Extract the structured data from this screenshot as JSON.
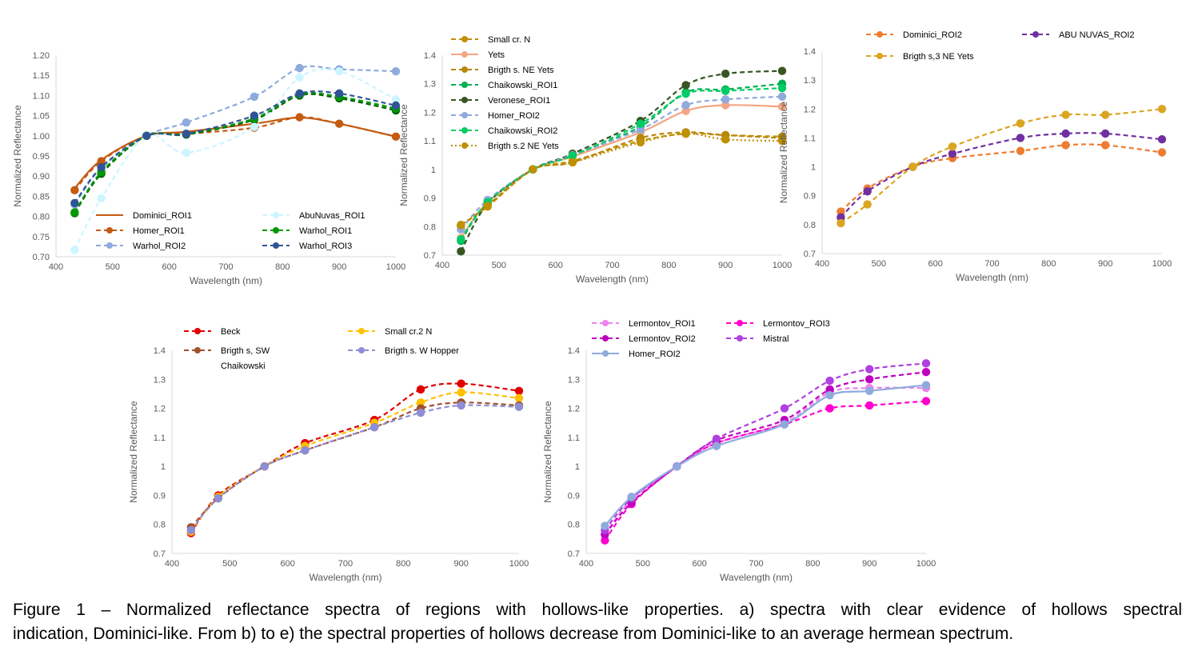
{
  "caption": {
    "line1": "Figure 1 – Normalized reflectance spectra of regions with hollows-like properties. a) spectra with clear evidence of hollows spectral",
    "line2": "indication, Dominici-like. From b) to e) the spectral properties of hollows decrease from Dominici-like to an average hermean spectrum."
  },
  "chart_data": [
    {
      "type": "line",
      "xlabel": "Wavelength (nm)",
      "ylabel": "Normalized Reflectance",
      "xlim": [
        400,
        1000
      ],
      "ylim": [
        0.7,
        1.2
      ],
      "xticks": [
        "400",
        "500",
        "600",
        "700",
        "800",
        "900",
        "1000"
      ],
      "yticks": [
        "0.70",
        "0.75",
        "0.80",
        "0.85",
        "0.90",
        "0.95",
        "1.00",
        "1.05",
        "1.10",
        "1.15",
        "1.20"
      ],
      "grid": false,
      "legend": "bottom",
      "series": [
        {
          "name": "Dominici_ROI1",
          "color": "#c55a11",
          "dash": "",
          "marker": false,
          "x": [
            433,
            480,
            560,
            630,
            750,
            830,
            900,
            1000
          ],
          "y": [
            0.87,
            0.94,
            1.0,
            1.01,
            1.03,
            1.045,
            1.03,
            0.998
          ]
        },
        {
          "name": "Homer_ROI1",
          "color": "#c55a11",
          "dash": "6,4",
          "marker": true,
          "x": [
            433,
            480,
            560,
            630,
            750,
            830,
            900,
            1000
          ],
          "y": [
            0.865,
            0.937,
            1.0,
            1.005,
            1.02,
            1.046,
            1.03,
            0.998
          ]
        },
        {
          "name": "Warhol_ROI2",
          "color": "#8faadc",
          "dash": "6,4",
          "marker": true,
          "x": [
            433,
            480,
            560,
            630,
            750,
            830,
            900,
            1000
          ],
          "y": [
            0.83,
            0.92,
            1.0,
            1.033,
            1.097,
            1.168,
            1.165,
            1.16
          ]
        },
        {
          "name": "",
          "color": "#006100",
          "dash": "6,4",
          "marker": true,
          "x": [
            433,
            480,
            560,
            630,
            750,
            830,
            900,
            1000
          ],
          "y": [
            0.808,
            0.906,
            1.0,
            1.003,
            1.04,
            1.1,
            1.093,
            1.063
          ]
        },
        {
          "name": "AbuNuvas_ROI1",
          "color": "#ccf5ff",
          "dash": "6,4",
          "marker": true,
          "x": [
            433,
            480,
            560,
            630,
            750,
            830,
            900,
            1000
          ],
          "y": [
            0.717,
            0.845,
            1.0,
            0.958,
            1.022,
            1.145,
            1.16,
            1.09
          ]
        },
        {
          "name": "Warhol_ROI1",
          "color": "#009900",
          "dash": "6,4",
          "marker": true,
          "x": [
            433,
            480,
            560,
            630,
            750,
            830,
            900,
            1000
          ],
          "y": [
            0.81,
            0.91,
            1.0,
            1.005,
            1.043,
            1.103,
            1.097,
            1.068
          ]
        },
        {
          "name": "Warhol_ROI3",
          "color": "#2f5597",
          "dash": "6,4",
          "marker": true,
          "x": [
            433,
            480,
            560,
            630,
            750,
            830,
            900,
            1000
          ],
          "y": [
            0.833,
            0.922,
            1.0,
            1.005,
            1.05,
            1.105,
            1.105,
            1.075
          ]
        }
      ]
    },
    {
      "type": "line",
      "xlabel": "Wavelength (nm)",
      "ylabel": "Normalized Reflectance",
      "xlim": [
        400,
        1000
      ],
      "ylim": [
        0.7,
        1.4
      ],
      "xticks": [
        "400",
        "500",
        "600",
        "700",
        "800",
        "900",
        "1000"
      ],
      "yticks": [
        "0.7",
        "0.8",
        "0.9",
        "1",
        "1.1",
        "1.2",
        "1.3",
        "1.4"
      ],
      "grid": false,
      "legend": "top-left",
      "series": [
        {
          "name": "Small cr. N",
          "color": "#bf9000",
          "dash": "6,4",
          "marker": true,
          "x": [
            433,
            480,
            560,
            630,
            750,
            830,
            900,
            1000
          ],
          "y": [
            0.806,
            0.87,
            1.0,
            1.03,
            1.1,
            1.125,
            1.12,
            1.115
          ]
        },
        {
          "name": "Yets",
          "color": "#f4a582",
          "dash": "",
          "marker": true,
          "x": [
            433,
            480,
            560,
            630,
            750,
            830,
            900,
            1000
          ],
          "y": [
            0.76,
            0.885,
            1.0,
            1.045,
            1.13,
            1.205,
            1.225,
            1.22
          ]
        },
        {
          "name": "Brigth s. NE Yets",
          "color": "#b8860b",
          "dash": "6,4",
          "marker": true,
          "x": [
            433,
            480,
            560,
            630,
            750,
            830,
            900,
            1000
          ],
          "y": [
            0.8,
            0.875,
            1.0,
            1.025,
            1.11,
            1.13,
            1.12,
            1.11
          ]
        },
        {
          "name": "Chaikowski_ROI1",
          "color": "#00b050",
          "dash": "6,4",
          "marker": true,
          "x": [
            433,
            480,
            560,
            630,
            750,
            830,
            900,
            1000
          ],
          "y": [
            0.75,
            0.885,
            1.0,
            1.05,
            1.15,
            1.27,
            1.28,
            1.3
          ]
        },
        {
          "name": "Veronese_ROI1",
          "color": "#375623",
          "dash": "6,4",
          "marker": true,
          "x": [
            433,
            480,
            560,
            630,
            750,
            830,
            900,
            1000
          ],
          "y": [
            0.713,
            0.88,
            1.0,
            1.055,
            1.17,
            1.295,
            1.335,
            1.345
          ]
        },
        {
          "name": "Homer_ROI2",
          "color": "#8faadc",
          "dash": "6,4",
          "marker": true,
          "x": [
            433,
            480,
            560,
            630,
            750,
            830,
            900,
            1000
          ],
          "y": [
            0.79,
            0.893,
            1.0,
            1.05,
            1.14,
            1.225,
            1.245,
            1.255
          ]
        },
        {
          "name": "Chaikowski_ROI2",
          "color": "#00cc66",
          "dash": "6,4",
          "marker": true,
          "x": [
            433,
            480,
            560,
            630,
            750,
            830,
            900,
            1000
          ],
          "y": [
            0.755,
            0.885,
            1.0,
            1.048,
            1.16,
            1.265,
            1.275,
            1.285
          ]
        },
        {
          "name": "Brigth s.2 NE Yets",
          "color": "#bf9000",
          "dash": "2,3",
          "marker": true,
          "x": [
            433,
            480,
            560,
            630,
            750,
            830,
            900,
            1000
          ],
          "y": [
            0.805,
            0.872,
            1.0,
            1.025,
            1.095,
            1.125,
            1.105,
            1.1
          ]
        }
      ]
    },
    {
      "type": "line",
      "xlabel": "Wavelength (nm)",
      "ylabel": "Normalized Reflectance",
      "xlim": [
        400,
        1000
      ],
      "ylim": [
        0.7,
        1.4
      ],
      "xticks": [
        "400",
        "500",
        "600",
        "700",
        "800",
        "900",
        "1000"
      ],
      "yticks": [
        "0.7",
        "0.8",
        "0.9",
        "1",
        "1.1",
        "1.2",
        "1.3",
        "1.4"
      ],
      "grid": false,
      "legend": "top",
      "series": [
        {
          "name": "Dominici_ROI2",
          "color": "#ed7d31",
          "dash": "6,4",
          "marker": true,
          "x": [
            433,
            480,
            560,
            630,
            750,
            830,
            900,
            1000
          ],
          "y": [
            0.845,
            0.925,
            1.0,
            1.03,
            1.055,
            1.075,
            1.075,
            1.05
          ]
        },
        {
          "name": "ABU NUVAS_ROI2",
          "color": "#7030a0",
          "dash": "6,4",
          "marker": true,
          "x": [
            433,
            480,
            560,
            630,
            750,
            830,
            900,
            1000
          ],
          "y": [
            0.825,
            0.915,
            1.0,
            1.045,
            1.1,
            1.115,
            1.115,
            1.095
          ]
        },
        {
          "name": "Brigth s,3 NE Yets",
          "color": "#daa520",
          "dash": "6,4",
          "marker": true,
          "x": [
            433,
            480,
            560,
            630,
            750,
            830,
            900,
            1000
          ],
          "y": [
            0.805,
            0.87,
            1.0,
            1.07,
            1.15,
            1.18,
            1.18,
            1.2
          ]
        }
      ]
    },
    {
      "type": "line",
      "xlabel": "Wavelength (nm)",
      "ylabel": "Normalized Reflectance",
      "xlim": [
        400,
        1000
      ],
      "ylim": [
        0.7,
        1.4
      ],
      "xticks": [
        "400",
        "500",
        "600",
        "700",
        "800",
        "900",
        "1000"
      ],
      "yticks": [
        "0.7",
        "0.8",
        "0.9",
        "1",
        "1.1",
        "1.2",
        "1.3",
        "1.4"
      ],
      "grid": false,
      "legend": "top",
      "series": [
        {
          "name": "Beck",
          "color": "#e00000",
          "dash": "6,4",
          "marker": true,
          "x": [
            433,
            480,
            560,
            630,
            750,
            830,
            900,
            1000
          ],
          "y": [
            0.77,
            0.9,
            1.0,
            1.08,
            1.16,
            1.265,
            1.285,
            1.26
          ]
        },
        {
          "name": "Small cr.2 N",
          "color": "#ffc000",
          "dash": "6,4",
          "marker": true,
          "x": [
            433,
            480,
            560,
            630,
            750,
            830,
            900,
            1000
          ],
          "y": [
            0.775,
            0.895,
            1.0,
            1.07,
            1.15,
            1.22,
            1.255,
            1.235
          ]
        },
        {
          "name": "Brigth s, SW Chaikowski",
          "color": "#a0522d",
          "dash": "6,4",
          "marker": true,
          "x": [
            433,
            480,
            560,
            630,
            750,
            830,
            900,
            1000
          ],
          "y": [
            0.79,
            0.89,
            1.0,
            1.055,
            1.135,
            1.2,
            1.22,
            1.21
          ]
        },
        {
          "name": "Brigth s. W Hopper",
          "color": "#8e8ed6",
          "dash": "6,4",
          "marker": true,
          "x": [
            433,
            480,
            560,
            630,
            750,
            830,
            900,
            1000
          ],
          "y": [
            0.78,
            0.89,
            1.0,
            1.055,
            1.135,
            1.185,
            1.21,
            1.205
          ]
        }
      ]
    },
    {
      "type": "line",
      "xlabel": "Wavelength (nm)",
      "ylabel": "Normalized Reflectance",
      "xlim": [
        400,
        1000
      ],
      "ylim": [
        0.7,
        1.4
      ],
      "xticks": [
        "400",
        "500",
        "600",
        "700",
        "800",
        "900",
        "1000"
      ],
      "yticks": [
        "0.7",
        "0.8",
        "0.9",
        "1",
        "1.1",
        "1.2",
        "1.3",
        "1.4"
      ],
      "grid": false,
      "legend": "top",
      "series": [
        {
          "name": "Lermontov_ROI1",
          "color": "#ee82ee",
          "dash": "6,4",
          "marker": true,
          "x": [
            433,
            480,
            560,
            630,
            750,
            830,
            900,
            1000
          ],
          "y": [
            0.765,
            0.885,
            1.0,
            1.08,
            1.15,
            1.255,
            1.27,
            1.27
          ]
        },
        {
          "name": "Lermontov_ROI3",
          "color": "#ff00cc",
          "dash": "6,4",
          "marker": true,
          "x": [
            433,
            480,
            560,
            630,
            750,
            830,
            900,
            1000
          ],
          "y": [
            0.745,
            0.87,
            1.0,
            1.08,
            1.145,
            1.2,
            1.21,
            1.225
          ]
        },
        {
          "name": "Lermontov_ROI2",
          "color": "#c000c0",
          "dash": "6,4",
          "marker": true,
          "x": [
            433,
            480,
            560,
            630,
            750,
            830,
            900,
            1000
          ],
          "y": [
            0.765,
            0.875,
            1.0,
            1.09,
            1.16,
            1.265,
            1.3,
            1.325
          ]
        },
        {
          "name": "Mistral",
          "color": "#b040e0",
          "dash": "6,4",
          "marker": true,
          "x": [
            433,
            480,
            560,
            630,
            750,
            830,
            900,
            1000
          ],
          "y": [
            0.78,
            0.89,
            1.0,
            1.095,
            1.2,
            1.295,
            1.335,
            1.355
          ]
        },
        {
          "name": "Homer_ROI2",
          "color": "#8faadc",
          "dash": "",
          "marker": true,
          "x": [
            433,
            480,
            560,
            630,
            750,
            830,
            900,
            1000
          ],
          "y": [
            0.795,
            0.895,
            1.0,
            1.07,
            1.145,
            1.245,
            1.26,
            1.28
          ]
        }
      ]
    }
  ]
}
